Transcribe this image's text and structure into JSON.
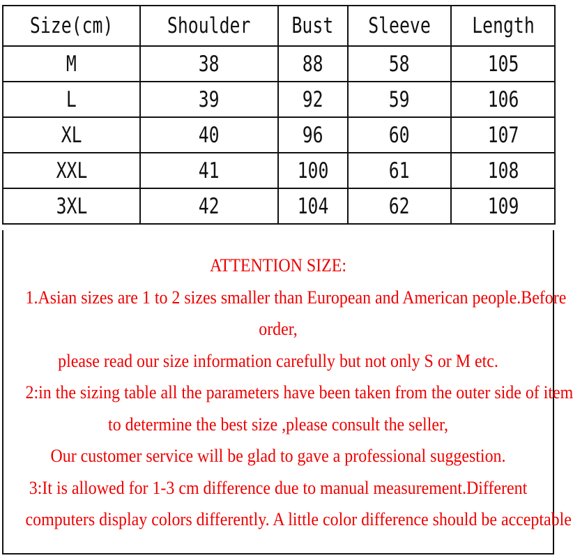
{
  "table": {
    "headers": [
      "Size(cm)",
      "Shoulder",
      "Bust",
      "Sleeve",
      "Length"
    ],
    "rows": [
      [
        "M",
        "38",
        "88",
        "58",
        "105"
      ],
      [
        "L",
        "39",
        "92",
        "59",
        "106"
      ],
      [
        "XL",
        "40",
        "96",
        "60",
        "107"
      ],
      [
        "XXL",
        "41",
        "100",
        "61",
        "108"
      ],
      [
        "3XL",
        "42",
        "104",
        "62",
        "109"
      ]
    ]
  },
  "notes": [
    "ATTENTION SIZE:",
    "1.Asian sizes are 1 to 2 sizes smaller than European and American people.Before",
    "order,",
    "please read our size information carefully but not only S or M etc.",
    "2:in the sizing table all the parameters have been taken from the outer side of item",
    "to determine the best size ,please consult the seller,",
    "Our customer service will be glad to gave a professional suggestion.",
    "3:It is allowed for 1-3 cm difference due to manual measurement.Different",
    "computers display colors differently. A little color difference should be acceptable"
  ],
  "colors": {
    "note_text": "#e00000",
    "grid": "#111111"
  }
}
